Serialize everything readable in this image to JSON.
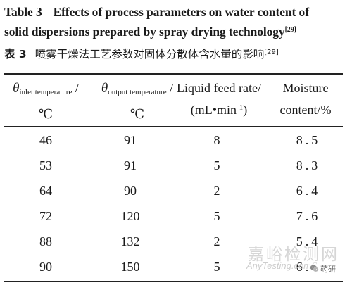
{
  "caption": {
    "en_label": "Table 3",
    "en_title": "Effects of process parameters on water content of solid dispersions prepared by spray drying technology",
    "en_line1": "Effects of process parameters on water content of",
    "en_line2": "solid dispersions prepared by spray drying technology",
    "ref": "[29]",
    "cn_label": "表 3",
    "cn_title": "喷雾干燥法工艺参数对固体分散体含水量的影响"
  },
  "headers": {
    "inlet": {
      "symbol": "θ",
      "subscript": "inlet temperature",
      "slash": "/",
      "unit": "℃"
    },
    "outlet": {
      "symbol": "θ",
      "subscript": "output temperature",
      "slash": "/",
      "unit": "℃"
    },
    "feed": {
      "line1": "Liquid feed rate/",
      "unit_open": "(mL•min",
      "unit_exp": "-1",
      "unit_close": ")"
    },
    "moisture": {
      "line1": "Moisture",
      "line2": "content/%"
    }
  },
  "rows": [
    {
      "inlet": "46",
      "outlet": "91",
      "feed": "8",
      "moisture": "8.5"
    },
    {
      "inlet": "53",
      "outlet": "91",
      "feed": "5",
      "moisture": "8.3"
    },
    {
      "inlet": "64",
      "outlet": "90",
      "feed": "2",
      "moisture": "6.4"
    },
    {
      "inlet": "72",
      "outlet": "120",
      "feed": "5",
      "moisture": "7.6"
    },
    {
      "inlet": "88",
      "outlet": "132",
      "feed": "2",
      "moisture": "5.4"
    },
    {
      "inlet": "90",
      "outlet": "150",
      "feed": "5",
      "moisture": "6.6"
    }
  ],
  "watermark": {
    "cn": "嘉峪检测网",
    "en": "AnyTesting.com",
    "badge_text": "药研",
    "badge_icon": "wechat-icon"
  }
}
